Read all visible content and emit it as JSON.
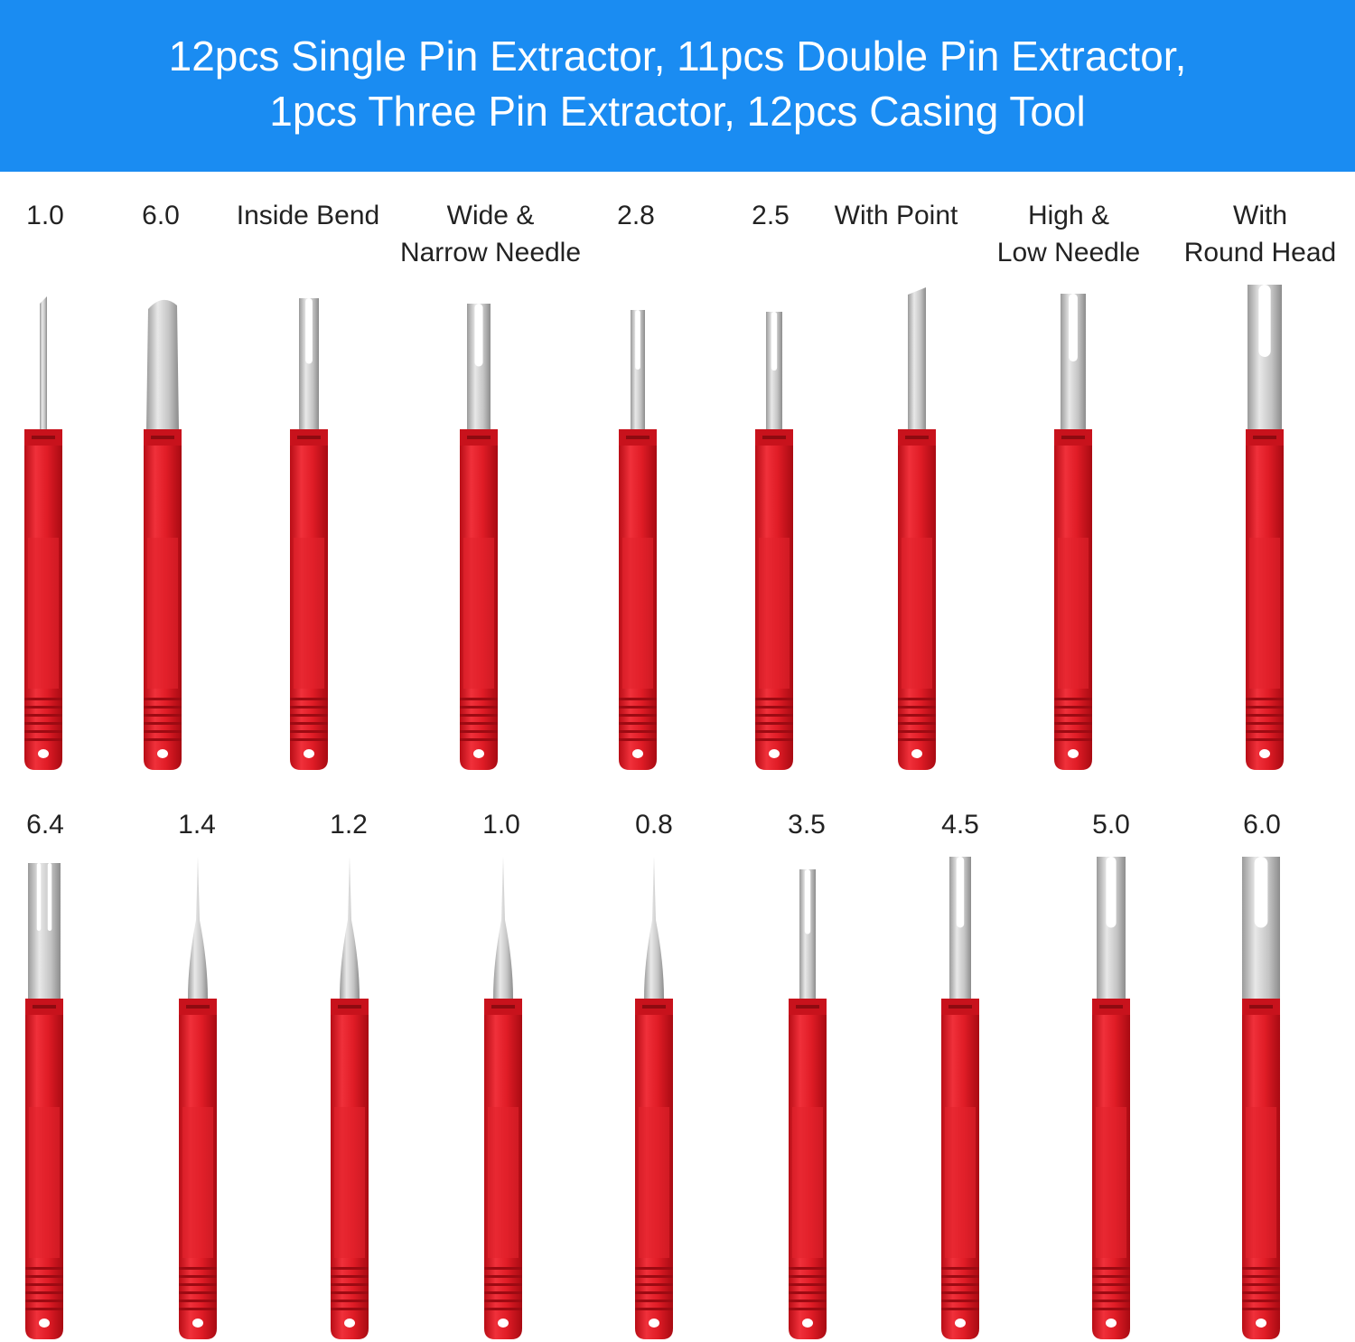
{
  "header": {
    "title": [
      "12pcs Single Pin Extractor, 11pcs Double Pin Extractor,",
      "1pcs Three Pin Extractor, 12pcs Casing Tool"
    ]
  },
  "rows": [
    {
      "labels": [
        [
          "1.0"
        ],
        [
          "6.0"
        ],
        [
          "Inside Bend"
        ],
        [
          "Wide &",
          "Narrow Needle"
        ],
        [
          "2.8"
        ],
        [
          "2.5"
        ],
        [
          "With Point"
        ],
        [
          "High &",
          "Low Needle"
        ],
        [
          "With",
          "Round Head"
        ]
      ]
    },
    {
      "labels": [
        [
          "6.4"
        ],
        [
          "1.4"
        ],
        [
          "1.2"
        ],
        [
          "1.0"
        ],
        [
          "0.8"
        ],
        [
          "3.5"
        ],
        [
          "4.5"
        ],
        [
          "5.0"
        ],
        [
          "6.0"
        ]
      ]
    }
  ]
}
